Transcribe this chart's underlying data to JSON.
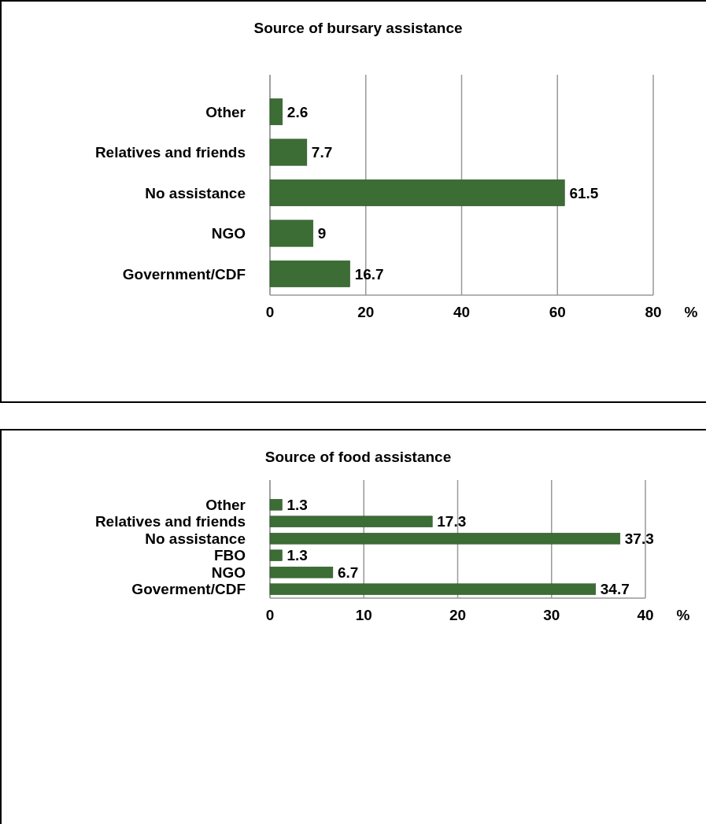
{
  "chart_data": [
    {
      "type": "bar",
      "orientation": "horizontal",
      "title": "Source of bursary assistance",
      "xlabel": "%",
      "categories": [
        "Other",
        "Relatives and friends",
        "No assistance",
        "NGO",
        "Government/CDF"
      ],
      "values": [
        2.6,
        7.7,
        61.5,
        9,
        16.7
      ],
      "color": "#3b6d34",
      "xlim": [
        0,
        80
      ],
      "xticks": [
        0,
        20,
        40,
        60,
        80
      ],
      "grid": "x",
      "data_labels": true
    },
    {
      "type": "bar",
      "orientation": "horizontal",
      "title": "Source of food assistance",
      "xlabel": "%",
      "categories": [
        "Other",
        "Relatives and friends",
        "No assistance",
        "FBO",
        "NGO",
        "Goverment/CDF"
      ],
      "values": [
        1.3,
        17.3,
        37.3,
        1.3,
        6.7,
        34.7
      ],
      "color": "#3b6d34",
      "xlim": [
        0,
        40
      ],
      "xticks": [
        0,
        10,
        20,
        30,
        40
      ],
      "grid": "x",
      "data_labels": true
    }
  ]
}
